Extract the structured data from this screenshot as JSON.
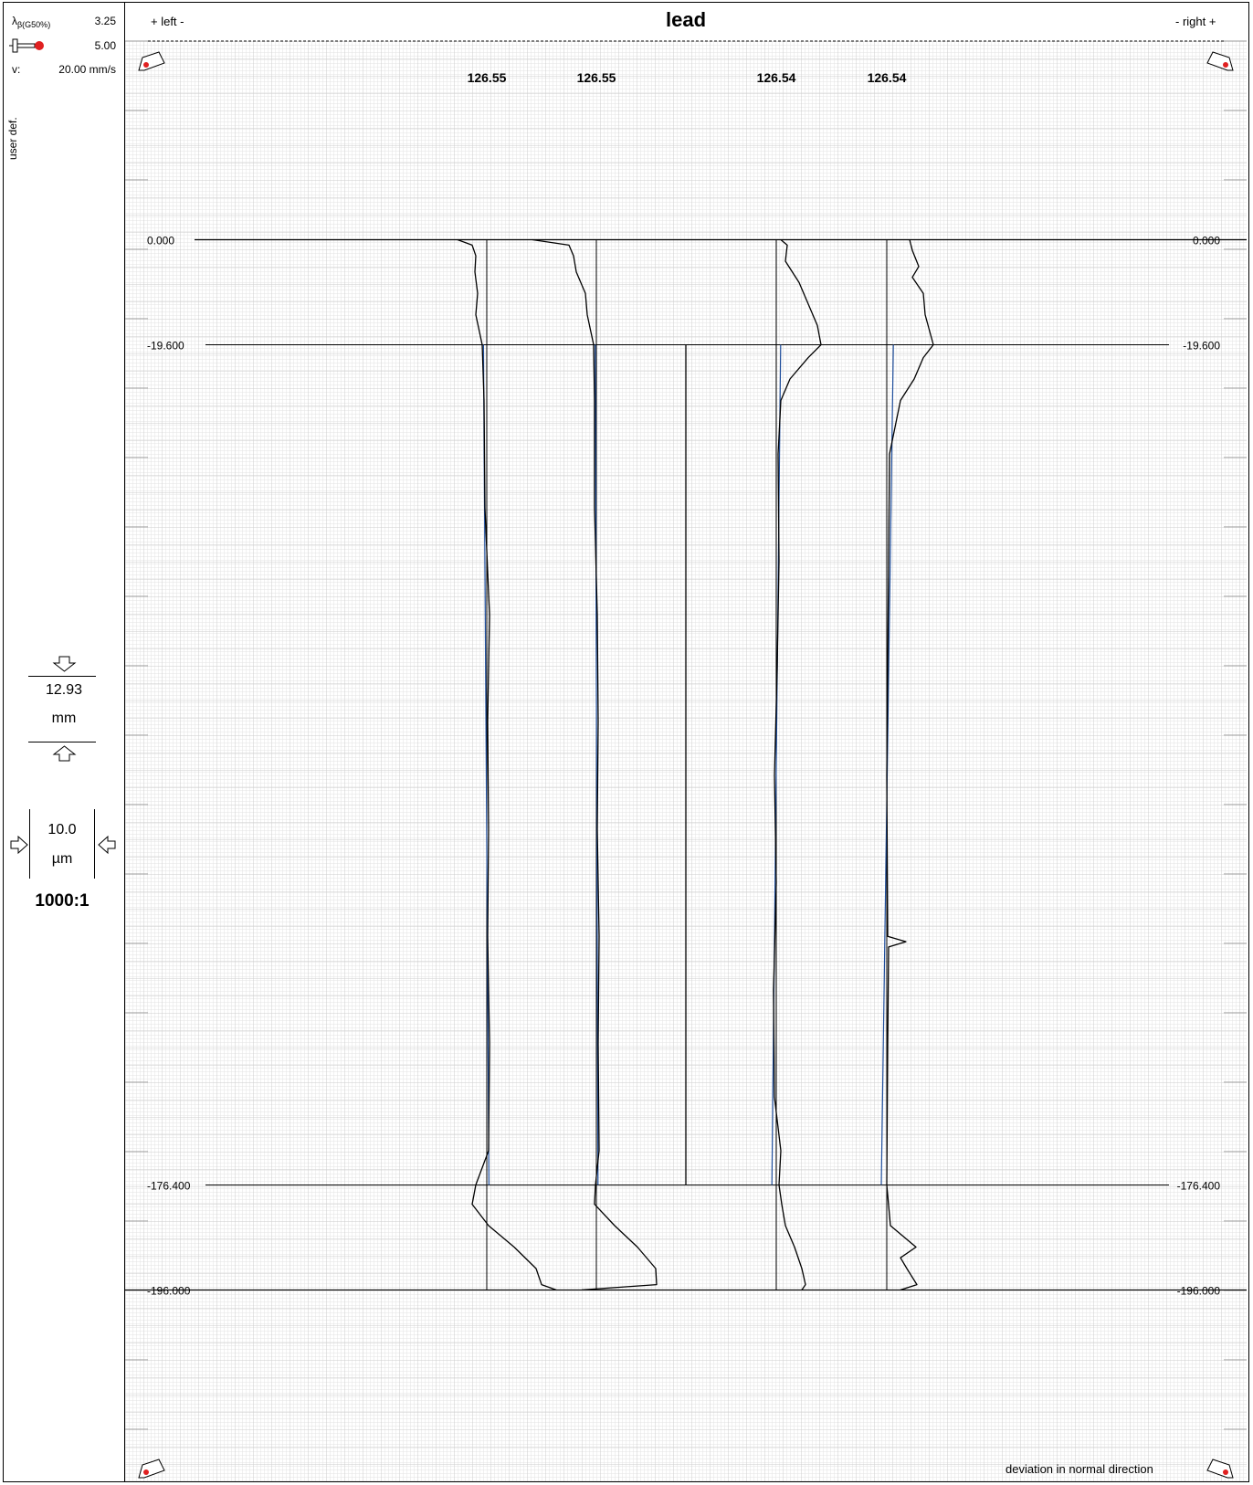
{
  "sidebar": {
    "lambda_label": "λβ(G50%)",
    "lambda_main": "λ",
    "lambda_sub": "β(G50%)",
    "lambda_value": "3.25",
    "probe_value": "5.00",
    "speed_label": "v:",
    "speed_value": "20.00 mm/s",
    "mode_label": "user def.",
    "vertical_scale_value": "12.93",
    "vertical_scale_unit": "mm",
    "horizontal_scale_value": "10.0",
    "horizontal_scale_unit": "µm",
    "magnification": "1000:1"
  },
  "header": {
    "left_label": "+ left -",
    "title": "lead",
    "right_label": "- right +"
  },
  "footer": {
    "note": "deviation in normal direction"
  },
  "colors": {
    "profile": "#000000",
    "fit_line": "#1f4e9c",
    "grid": "#cfcfcf",
    "marker_red": "#e02020"
  },
  "chart_data": {
    "type": "line",
    "title": "lead",
    "xlabel": "deviation in normal direction",
    "ylabel": "",
    "reference_lines": [
      {
        "value": 0.0,
        "left_label": "0.000",
        "right_label": "0.000"
      },
      {
        "value": -19.6,
        "left_label": "-19.600",
        "right_label": "-19.600"
      },
      {
        "value": -176.4,
        "left_label": "-176.400",
        "right_label": "-176.400"
      },
      {
        "value": -196.0,
        "left_label": "-196.000",
        "right_label": "-196.000"
      }
    ],
    "ylim": [
      37.4,
      -229.6
    ],
    "x_scale_um_per_division": 10.0,
    "magnification": "1000:1",
    "series": [
      {
        "label": "126.55",
        "side": "left",
        "fit_line": {
          "top_offset_um": -0.6,
          "bottom_offset_um": 0.4
        },
        "profile": [
          [
            0,
            -3.2
          ],
          [
            1,
            -1.6
          ],
          [
            3,
            -1.2
          ],
          [
            6,
            -1.3
          ],
          [
            10,
            -1.0
          ],
          [
            14,
            -1.2
          ],
          [
            19.6,
            -0.5
          ],
          [
            30,
            -0.3
          ],
          [
            50,
            -0.2
          ],
          [
            70,
            0.3
          ],
          [
            90,
            0.1
          ],
          [
            110,
            0.2
          ],
          [
            130,
            0.1
          ],
          [
            150,
            0.3
          ],
          [
            170,
            0.2
          ],
          [
            176.4,
            -1.2
          ],
          [
            180,
            -1.6
          ],
          [
            184,
            0.2
          ],
          [
            188,
            3.0
          ],
          [
            192,
            5.4
          ],
          [
            195,
            6.0
          ],
          [
            196,
            7.6
          ]
        ]
      },
      {
        "label": "126.55",
        "side": "left",
        "fit_line": {
          "top_offset_um": -0.2,
          "bottom_offset_um": 0.3
        },
        "profile": [
          [
            0,
            -7.0
          ],
          [
            1,
            -3.0
          ],
          [
            3,
            -2.5
          ],
          [
            6,
            -2.2
          ],
          [
            10,
            -1.2
          ],
          [
            14,
            -1.0
          ],
          [
            19.6,
            -0.3
          ],
          [
            30,
            -0.2
          ],
          [
            50,
            -0.2
          ],
          [
            70,
            0.1
          ],
          [
            90,
            0.2
          ],
          [
            110,
            0.1
          ],
          [
            130,
            0.3
          ],
          [
            150,
            0.2
          ],
          [
            170,
            0.3
          ],
          [
            176.4,
            -0.1
          ],
          [
            180,
            -0.2
          ],
          [
            184,
            2.0
          ],
          [
            188,
            4.5
          ],
          [
            192,
            6.5
          ],
          [
            195,
            6.6
          ],
          [
            196,
            -1.6
          ]
        ]
      },
      {
        "label": "126.54",
        "side": "right",
        "fit_line": {
          "top_offset_um": 0.8,
          "bottom_offset_um": -0.8
        },
        "profile": [
          [
            0,
            0.5
          ],
          [
            1,
            1.2
          ],
          [
            4,
            1.0
          ],
          [
            8,
            2.5
          ],
          [
            12,
            3.5
          ],
          [
            16,
            4.5
          ],
          [
            19.6,
            4.9
          ],
          [
            22,
            3.5
          ],
          [
            26,
            1.5
          ],
          [
            30,
            0.5
          ],
          [
            40,
            0.2
          ],
          [
            60,
            0.3
          ],
          [
            80,
            0.1
          ],
          [
            100,
            -0.2
          ],
          [
            120,
            0.0
          ],
          [
            140,
            -0.3
          ],
          [
            160,
            -0.2
          ],
          [
            170,
            0.5
          ],
          [
            176.4,
            0.3
          ],
          [
            180,
            0.6
          ],
          [
            184,
            1.0
          ],
          [
            188,
            2.0
          ],
          [
            192,
            2.8
          ],
          [
            195,
            3.2
          ],
          [
            196,
            2.8
          ]
        ]
      },
      {
        "label": "126.54",
        "side": "right",
        "fit_line": {
          "top_offset_um": 1.2,
          "bottom_offset_um": -1.0
        },
        "profile": [
          [
            0,
            2.5
          ],
          [
            2,
            2.8
          ],
          [
            5,
            3.5
          ],
          [
            7,
            2.8
          ],
          [
            10,
            4.0
          ],
          [
            14,
            4.2
          ],
          [
            19.6,
            5.1
          ],
          [
            22,
            4.0
          ],
          [
            26,
            3.0
          ],
          [
            30,
            1.5
          ],
          [
            40,
            0.3
          ],
          [
            60,
            0.2
          ],
          [
            80,
            0.1
          ],
          [
            100,
            0.0
          ],
          [
            130,
            0.1
          ],
          [
            131,
            2.1
          ],
          [
            132,
            0.2
          ],
          [
            150,
            0.1
          ],
          [
            176.4,
            0.0
          ],
          [
            184,
            0.4
          ],
          [
            188,
            3.2
          ],
          [
            190,
            1.5
          ],
          [
            192,
            2.2
          ],
          [
            195,
            3.3
          ],
          [
            196,
            1.5
          ]
        ]
      }
    ]
  }
}
